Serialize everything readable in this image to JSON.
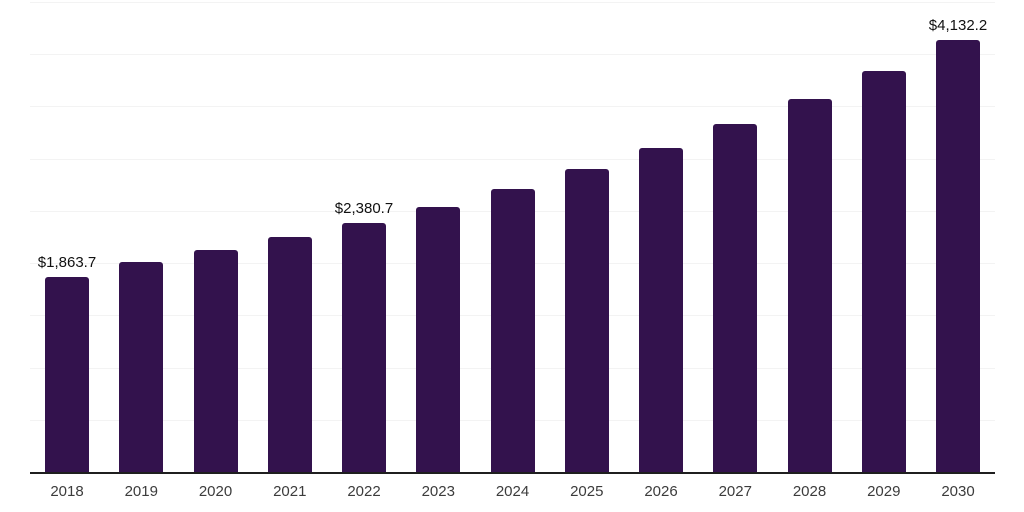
{
  "chart_data": {
    "type": "bar",
    "title": "",
    "xlabel": "",
    "ylabel": "",
    "categories": [
      "2018",
      "2019",
      "2020",
      "2021",
      "2022",
      "2023",
      "2024",
      "2025",
      "2026",
      "2027",
      "2028",
      "2029",
      "2030"
    ],
    "values": [
      1863.7,
      2010,
      2125,
      2250,
      2380.7,
      2540,
      2710,
      2900,
      3100,
      3330,
      3570,
      3835,
      4132.2
    ],
    "value_labels": [
      "$1,863.7",
      "",
      "",
      "",
      "$2,380.7",
      "",
      "",
      "",
      "",
      "",
      "",
      "",
      "$4,132.2"
    ],
    "labeled_points": [
      {
        "category": "2018",
        "label": "$1,863.7",
        "value": 1863.7
      },
      {
        "category": "2022",
        "label": "$2,380.7",
        "value": 2380.7
      },
      {
        "category": "2030",
        "label": "$4,132.2",
        "value": 4132.2
      }
    ],
    "ylim": [
      0,
      4500
    ],
    "gridline_step": 500,
    "grid": "horizontal",
    "legend": "none",
    "y_axis_tick_labels_visible": false
  },
  "colors": {
    "bar": "#33124d",
    "background": "#ffffff",
    "gridline": "#f3f3f3",
    "axis_line": "#1f1f1f",
    "value_label_text": "#111111",
    "tick_label_text": "#3c3c3c"
  }
}
